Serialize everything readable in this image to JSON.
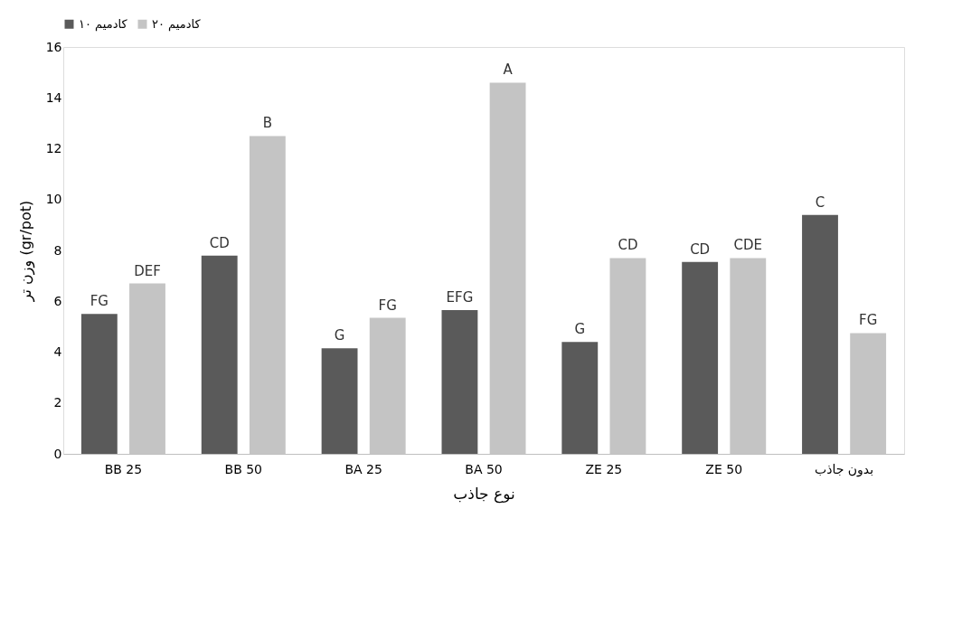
{
  "chart_data": {
    "type": "bar",
    "xlabel": "نوع جاذب",
    "ylabel": "وزن تر (gr/pot)",
    "categories": [
      "BB 25",
      "BB 50",
      "BA 25",
      "BA 50",
      "ZE 25",
      "ZE 50",
      "بدون جاذب"
    ],
    "series": [
      {
        "name": "کادمیم ۱۰",
        "color": "#5a5a5a",
        "values": [
          5.5,
          7.8,
          4.15,
          5.65,
          4.4,
          7.55,
          9.4
        ],
        "value_labels": [
          "FG",
          "CD",
          "G",
          "EFG",
          "G",
          "CD",
          "C"
        ]
      },
      {
        "name": "کادمیم ۲۰",
        "color": "#c4c4c4",
        "values": [
          6.7,
          12.5,
          5.35,
          14.6,
          7.7,
          7.7,
          4.75
        ],
        "value_labels": [
          "DEF",
          "B",
          "FG",
          "A",
          "CD",
          "CDE",
          "FG"
        ]
      }
    ],
    "ylim": [
      0,
      16
    ],
    "yticks": [
      0,
      2,
      4,
      6,
      8,
      10,
      12,
      14,
      16
    ],
    "grid": false,
    "legend": "top"
  }
}
